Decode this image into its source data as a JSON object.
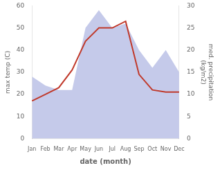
{
  "chart_data": {
    "type": "line",
    "categories": [
      "Jan",
      "Feb",
      "Mar",
      "Apr",
      "May",
      "Jun",
      "Jul",
      "Aug",
      "Sep",
      "Oct",
      "Nov",
      "Dec"
    ],
    "series": [
      {
        "type": "area",
        "color": "#c5caea",
        "axis": "y2",
        "values": [
          14,
          12,
          11,
          11,
          25,
          29,
          25,
          26,
          20,
          16,
          20,
          15
        ]
      },
      {
        "type": "line",
        "color": "#c0392b",
        "values": [
          17,
          20,
          23,
          31,
          44,
          50,
          50,
          53,
          29,
          22,
          21,
          21
        ]
      }
    ],
    "xlabel": "date (month)",
    "ylabel": "max temp (C)",
    "y2label": "med. precipitation\n(kg/m2)",
    "ylim": [
      0,
      60
    ],
    "yticks": [
      0,
      10,
      20,
      30,
      40,
      50,
      60
    ],
    "y2lim": [
      0,
      30
    ],
    "y2ticks": [
      0,
      5,
      10,
      15,
      20,
      25,
      30
    ],
    "grid": false
  }
}
